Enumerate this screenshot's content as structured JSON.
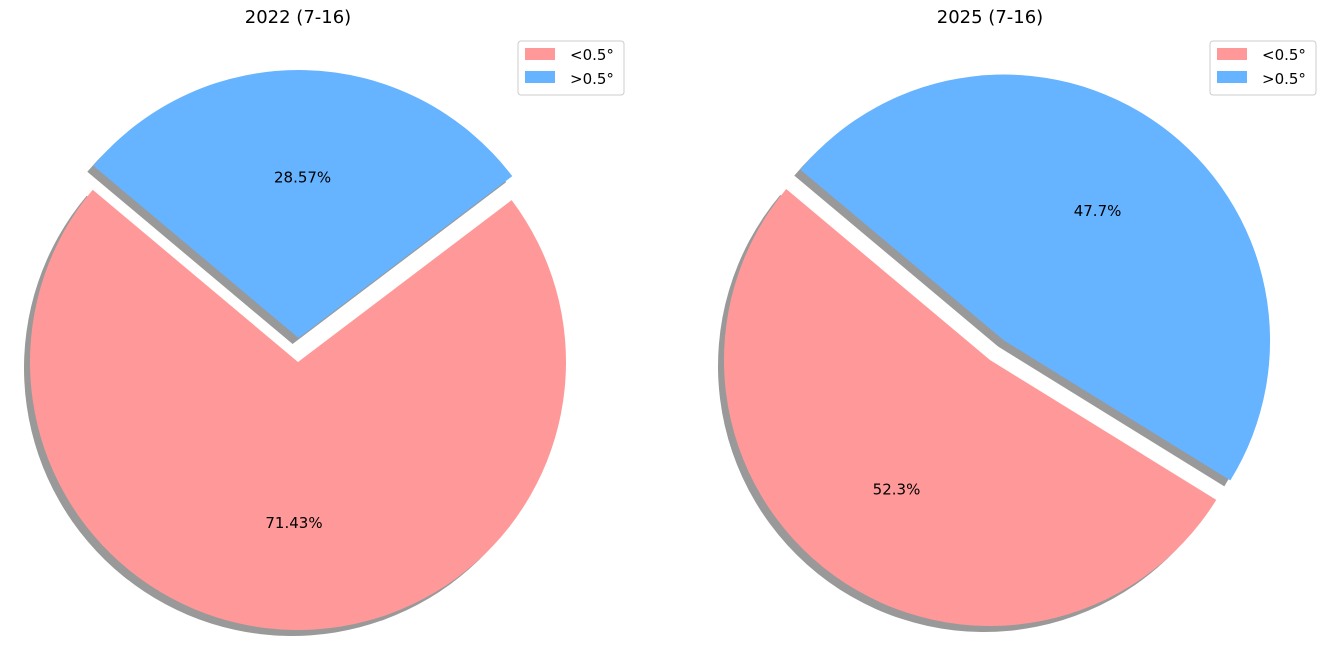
{
  "chart_data": [
    {
      "type": "pie",
      "title": "2022 (7-16)",
      "slices": [
        {
          "label": "<0.5°",
          "value": 71.43,
          "pct_label": "71.43%",
          "color": "#ff9999"
        },
        {
          "label": ">0.5°",
          "value": 28.57,
          "pct_label": "28.57%",
          "color": "#66b3ff",
          "exploded": true
        }
      ],
      "legend": {
        "placement": "upper right",
        "entries": [
          "<0.5°",
          ">0.5°"
        ]
      },
      "shadow": true
    },
    {
      "type": "pie",
      "title": "2025 (7-16)",
      "slices": [
        {
          "label": "<0.5°",
          "value": 52.3,
          "pct_label": "52.3%",
          "color": "#ff9999"
        },
        {
          "label": ">0.5°",
          "value": 47.7,
          "pct_label": "47.7%",
          "color": "#66b3ff",
          "exploded": true
        }
      ],
      "legend": {
        "placement": "upper right",
        "entries": [
          "<0.5°",
          ">0.5°"
        ]
      },
      "shadow": true
    }
  ]
}
